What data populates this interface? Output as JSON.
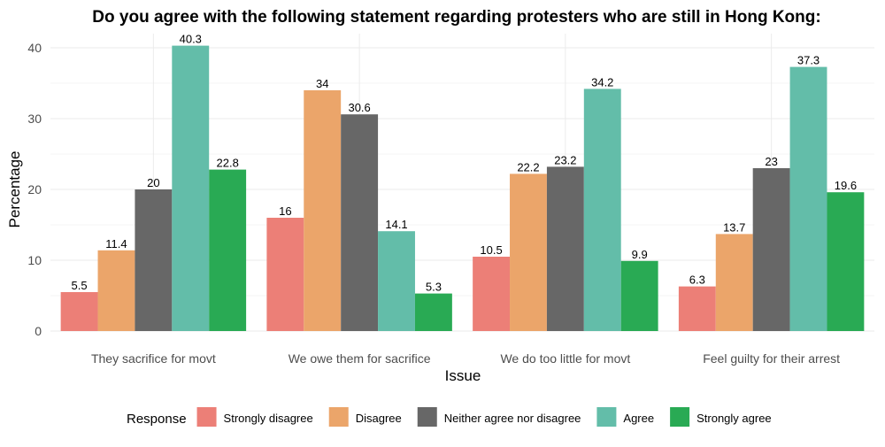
{
  "chart_data": {
    "type": "bar",
    "title": "Do you agree with the following statement regarding protesters who are still in Hong Kong:",
    "xlabel": "Issue",
    "ylabel": "Percentage",
    "categories": [
      "They sacrifice for movt",
      "We owe them for sacrifice",
      "We do too little for movt",
      "Feel guilty for their arrest"
    ],
    "series": [
      {
        "name": "Strongly disagree",
        "color": "#EC7F77",
        "values": [
          5.5,
          16,
          10.5,
          6.3
        ]
      },
      {
        "name": "Disagree",
        "color": "#EBA56A",
        "values": [
          11.4,
          34,
          22.2,
          13.7
        ]
      },
      {
        "name": "Neither agree nor disagree",
        "color": "#676767",
        "values": [
          20,
          30.6,
          23.2,
          23
        ]
      },
      {
        "name": "Agree",
        "color": "#63BDA9",
        "values": [
          40.3,
          14.1,
          34.2,
          37.3
        ]
      },
      {
        "name": "Strongly agree",
        "color": "#29AA54",
        "values": [
          22.8,
          5.3,
          9.9,
          19.6
        ]
      }
    ],
    "data_labels": [
      [
        "5.5",
        "16",
        "10.5",
        "6.3"
      ],
      [
        "11.4",
        "34",
        "22.2",
        "13.7"
      ],
      [
        "20",
        "30.6",
        "23.2",
        "23"
      ],
      [
        "40.3",
        "14.1",
        "34.2",
        "37.3"
      ],
      [
        "22.8",
        "5.3",
        "9.9",
        "19.6"
      ]
    ],
    "ylim": [
      0,
      42
    ],
    "yticks": [
      0,
      10,
      20,
      30,
      40
    ],
    "ytick_labels": [
      "0",
      "10",
      "20",
      "30",
      "40"
    ],
    "grid": true,
    "legend": {
      "title": "Response",
      "position": "bottom"
    }
  }
}
